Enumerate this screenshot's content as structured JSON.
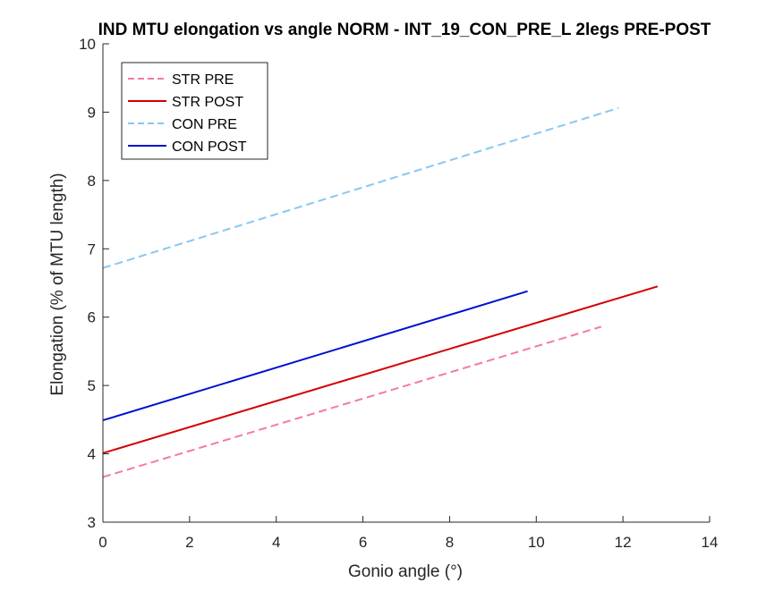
{
  "chart_data": {
    "type": "line",
    "title": "IND MTU elongation vs angle NORM - INT_19_CON_PRE_L 2legs PRE-POST",
    "xlabel": "Gonio angle (°)",
    "ylabel": "Elongation (% of MTU length)",
    "xlim": [
      0,
      14
    ],
    "ylim": [
      3,
      10
    ],
    "xticks": [
      0,
      2,
      4,
      6,
      8,
      10,
      12,
      14
    ],
    "yticks": [
      3,
      4,
      5,
      6,
      7,
      8,
      9,
      10
    ],
    "grid": false,
    "legend_position": "top-left",
    "series": [
      {
        "name": "STR PRE",
        "color": "#f47aa3",
        "dash": "dashed",
        "x": [
          0,
          11.5
        ],
        "y": [
          3.66,
          5.86
        ]
      },
      {
        "name": "STR POST",
        "color": "#d40000",
        "dash": "solid",
        "x": [
          0,
          12.8
        ],
        "y": [
          4.01,
          6.45
        ]
      },
      {
        "name": "CON PRE",
        "color": "#87c8f0",
        "dash": "dashed",
        "x": [
          0,
          11.9
        ],
        "y": [
          6.72,
          9.06
        ]
      },
      {
        "name": "CON POST",
        "color": "#0010d0",
        "dash": "solid",
        "x": [
          0,
          9.8
        ],
        "y": [
          4.49,
          6.38
        ]
      }
    ]
  }
}
